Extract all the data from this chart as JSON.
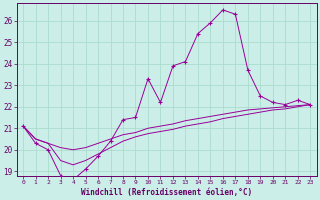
{
  "xlabel": "Windchill (Refroidissement éolien,°C)",
  "background_color": "#cceee8",
  "grid_color": "#aaddcc",
  "line_color": "#990099",
  "hours": [
    0,
    1,
    2,
    3,
    4,
    5,
    6,
    7,
    8,
    9,
    10,
    11,
    12,
    13,
    14,
    15,
    16,
    17,
    18,
    19,
    20,
    21,
    22,
    23
  ],
  "temp": [
    21.1,
    20.3,
    20.0,
    18.8,
    18.6,
    19.1,
    19.7,
    20.4,
    21.4,
    21.5,
    23.3,
    22.2,
    23.9,
    24.1,
    25.4,
    25.9,
    26.5,
    26.3,
    23.7,
    22.5,
    22.2,
    22.1,
    22.3,
    22.1
  ],
  "line2": [
    21.1,
    20.5,
    20.3,
    20.1,
    20.0,
    20.1,
    20.3,
    20.5,
    20.7,
    20.8,
    21.0,
    21.1,
    21.2,
    21.35,
    21.45,
    21.55,
    21.65,
    21.75,
    21.85,
    21.9,
    21.95,
    22.0,
    22.05,
    22.1
  ],
  "line3": [
    21.1,
    20.5,
    20.3,
    19.5,
    19.3,
    19.5,
    19.8,
    20.1,
    20.4,
    20.6,
    20.75,
    20.85,
    20.95,
    21.1,
    21.2,
    21.3,
    21.45,
    21.55,
    21.65,
    21.75,
    21.85,
    21.9,
    22.0,
    22.1
  ],
  "ylim_min": 18.8,
  "ylim_max": 26.8,
  "yticks": [
    19,
    20,
    21,
    22,
    23,
    24,
    25,
    26
  ],
  "xlim_min": -0.5,
  "xlim_max": 23.5
}
